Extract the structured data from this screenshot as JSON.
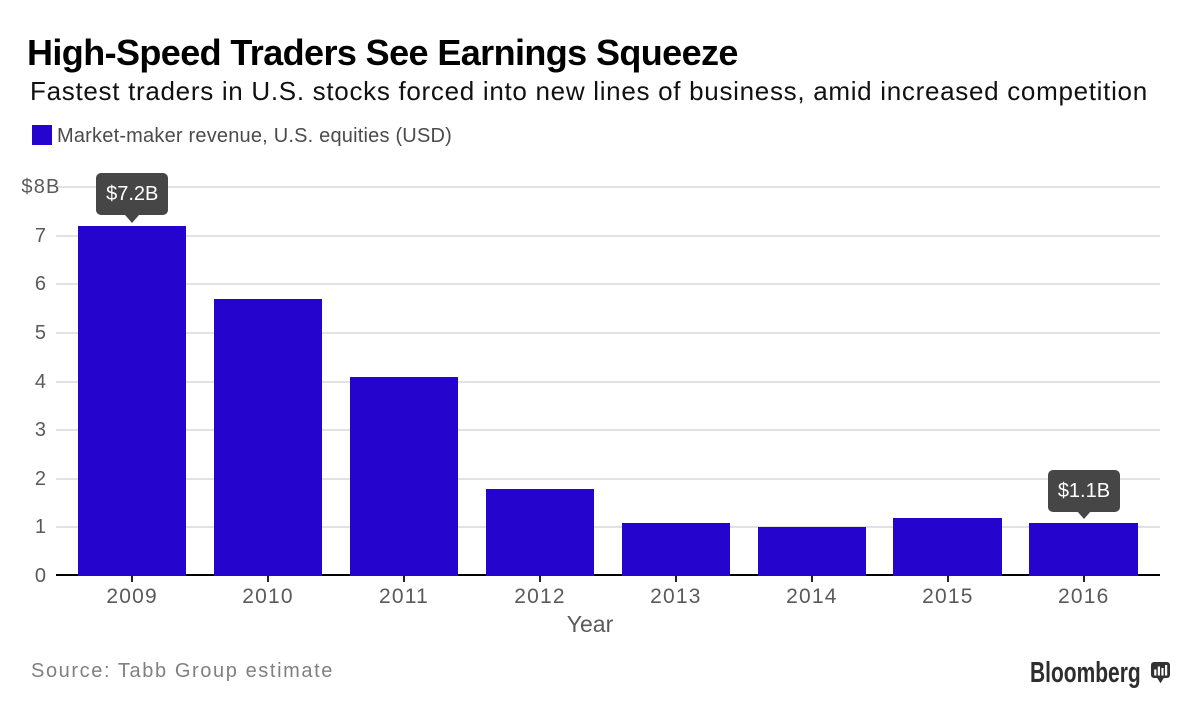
{
  "header": {
    "title": "High-Speed Traders See Earnings Squeeze",
    "subtitle": "Fastest traders in U.S. stocks forced into new lines of business, amid increased competition"
  },
  "legend": {
    "label": "Market-maker revenue, U.S. equities (USD)",
    "swatch_color": "#2505cd"
  },
  "chart_data": {
    "type": "bar",
    "categories": [
      "2009",
      "2010",
      "2011",
      "2012",
      "2013",
      "2014",
      "2015",
      "2016"
    ],
    "values": [
      7.2,
      5.7,
      4.1,
      1.8,
      1.1,
      1.0,
      1.2,
      1.1
    ],
    "series_name": "Market-maker revenue, U.S. equities (USD)",
    "title": "High-Speed Traders See Earnings Squeeze",
    "xlabel": "Year",
    "ylabel": "",
    "ylim": [
      0,
      8
    ],
    "ytick_values": [
      0,
      1,
      2,
      3,
      4,
      5,
      6,
      7,
      8
    ],
    "ytick_labels": [
      "0",
      "1",
      "2",
      "3",
      "4",
      "5",
      "6",
      "7",
      "$8B"
    ],
    "grid": true,
    "legend_position": "top-left",
    "bar_color": "#2505cd",
    "annotations": [
      {
        "category": "2009",
        "label": "$7.2B"
      },
      {
        "category": "2016",
        "label": "$1.1B"
      }
    ]
  },
  "footer": {
    "source": "Source: Tabb Group estimate",
    "brand": "Bloomberg"
  },
  "colors": {
    "background": "#ffffff",
    "bar": "#2505cd",
    "tooltip_background": "#464646",
    "tooltip_text": "#ffffff",
    "gridline": "#e2e2e2",
    "axis_line": "#000000",
    "tick_label": "#5a5a5a",
    "legend_text": "#4b4b4b",
    "source_text": "#808080",
    "brand_text": "#2e2e2e"
  }
}
